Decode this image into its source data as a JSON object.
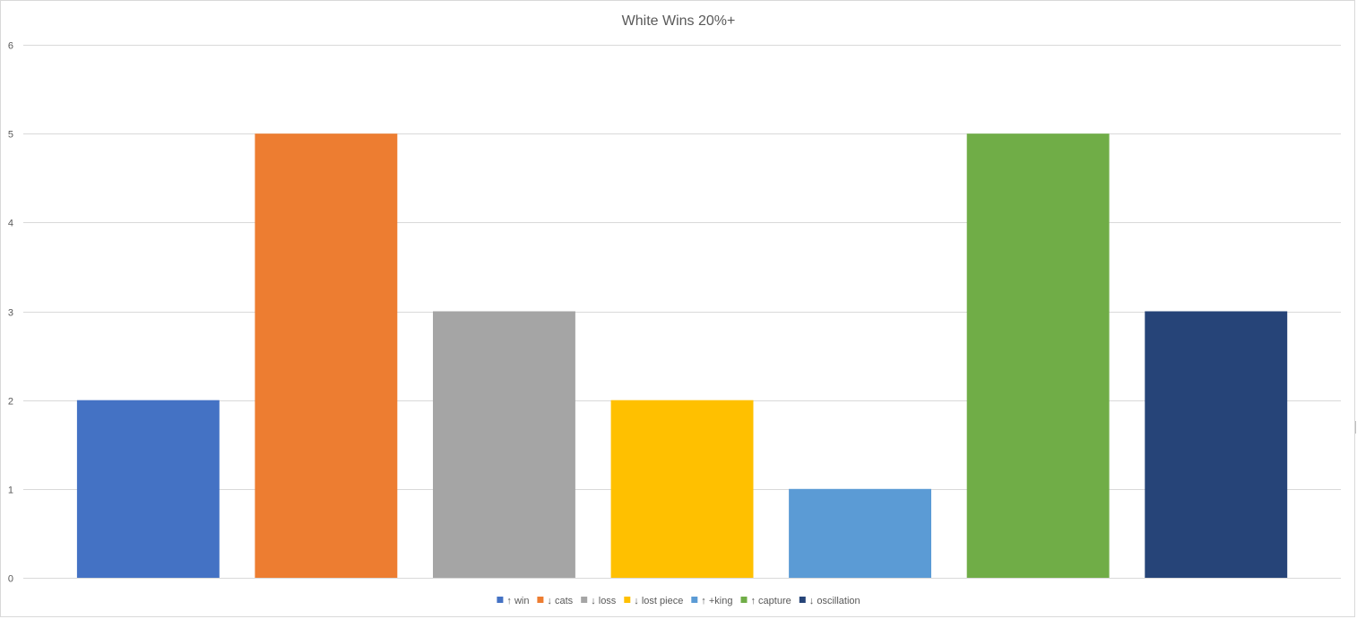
{
  "chart_data": {
    "type": "bar",
    "title": "White Wins 20%+",
    "xlabel": "",
    "ylabel": "",
    "ylim": [
      0,
      6
    ],
    "yticks": [
      0,
      1,
      2,
      3,
      4,
      5,
      6
    ],
    "grid": true,
    "legend_position": "bottom",
    "series": [
      {
        "name": "↑ win",
        "value": 2,
        "color": "#4472C4"
      },
      {
        "name": "↓ cats",
        "value": 5,
        "color": "#ED7D31"
      },
      {
        "name": "↓ loss",
        "value": 3,
        "color": "#A5A5A5"
      },
      {
        "name": "↓ lost piece",
        "value": 2,
        "color": "#FFC000"
      },
      {
        "name": "↑ +king",
        "value": 1,
        "color": "#5B9BD5"
      },
      {
        "name": "↑ capture",
        "value": 5,
        "color": "#70AD47"
      },
      {
        "name": "↓ oscillation",
        "value": 3,
        "color": "#264478"
      }
    ]
  }
}
